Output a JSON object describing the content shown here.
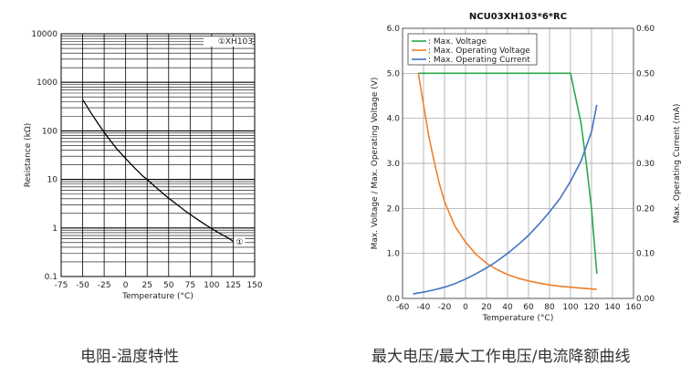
{
  "captions": {
    "left": "电阻-温度特性",
    "right": "最大电压/最大工作电压/电流降额曲线"
  },
  "chart_data": [
    {
      "type": "line",
      "title": "",
      "xlabel": "Temperature (°C)",
      "ylabel": "Resistance (kΩ)",
      "xlim": [
        -75,
        150
      ],
      "ylim": [
        0.1,
        10000
      ],
      "yscale": "log",
      "grid": true,
      "xticks": [
        "-75",
        "-50",
        "-25",
        "0",
        "25",
        "50",
        "75",
        "100",
        "125",
        "150"
      ],
      "yticks": [
        "10000",
        "1000",
        "100",
        "10",
        "1",
        "0.1"
      ],
      "legend": "top-right",
      "series": [
        {
          "name": "①XH103",
          "color": "#000000",
          "x": [
            -50,
            -40,
            -30,
            -20,
            -10,
            0,
            10,
            20,
            25,
            30,
            40,
            50,
            60,
            70,
            80,
            90,
            100,
            110,
            120,
            125
          ],
          "y": [
            440,
            230,
            125,
            71,
            42,
            27,
            17.5,
            11.7,
            10,
            8.3,
            5.8,
            4.1,
            3.0,
            2.2,
            1.65,
            1.25,
            0.97,
            0.76,
            0.61,
            0.53
          ]
        }
      ],
      "annotations": [
        "①"
      ]
    },
    {
      "type": "line",
      "title": "NCU03XH103*6*RC",
      "xlabel": "Temperature (°C)",
      "ylabel": "Max. Voltage / Max. Operating Voltage (V)",
      "y2label": "Max. Operating Current (mA)",
      "xlim": [
        -60,
        160
      ],
      "ylim": [
        0,
        6
      ],
      "y2lim": [
        0,
        0.6
      ],
      "grid": true,
      "legend": "top-left",
      "xticks": [
        "-60",
        "-40",
        "-20",
        "0",
        "20",
        "40",
        "60",
        "80",
        "100",
        "120",
        "140",
        "160"
      ],
      "yticks": [
        "0.0",
        "1.0",
        "2.0",
        "3.0",
        "4.0",
        "5.0",
        "6.0"
      ],
      "y2ticks": [
        "0.00",
        "0.10",
        "0.20",
        "0.30",
        "0.40",
        "0.50",
        "0.60"
      ],
      "series": [
        {
          "name": "Max. Voltage",
          "color": "#2aa84a",
          "axis": "left",
          "x": [
            -45,
            100,
            110,
            115,
            120,
            125
          ],
          "y": [
            5.0,
            5.0,
            3.9,
            3.0,
            2.0,
            0.55
          ]
        },
        {
          "name": "Max. Operating Voltage",
          "color": "#f07f2a",
          "axis": "left",
          "x": [
            -45,
            -40,
            -35,
            -30,
            -25,
            -20,
            -10,
            0,
            10,
            20,
            25,
            30,
            40,
            50,
            60,
            70,
            80,
            90,
            100,
            110,
            120,
            125
          ],
          "y": [
            5.0,
            4.3,
            3.6,
            3.05,
            2.55,
            2.15,
            1.6,
            1.25,
            0.98,
            0.78,
            0.71,
            0.64,
            0.53,
            0.45,
            0.39,
            0.34,
            0.3,
            0.27,
            0.25,
            0.23,
            0.21,
            0.2
          ]
        },
        {
          "name": "Max. Operating Current",
          "color": "#4472c4",
          "axis": "right",
          "x": [
            -50,
            -40,
            -30,
            -20,
            -10,
            0,
            10,
            20,
            25,
            30,
            40,
            50,
            60,
            70,
            80,
            90,
            100,
            110,
            120,
            125
          ],
          "y": [
            0.01,
            0.014,
            0.019,
            0.025,
            0.033,
            0.043,
            0.055,
            0.068,
            0.075,
            0.083,
            0.1,
            0.119,
            0.14,
            0.165,
            0.192,
            0.222,
            0.26,
            0.305,
            0.37,
            0.43
          ]
        }
      ]
    }
  ]
}
